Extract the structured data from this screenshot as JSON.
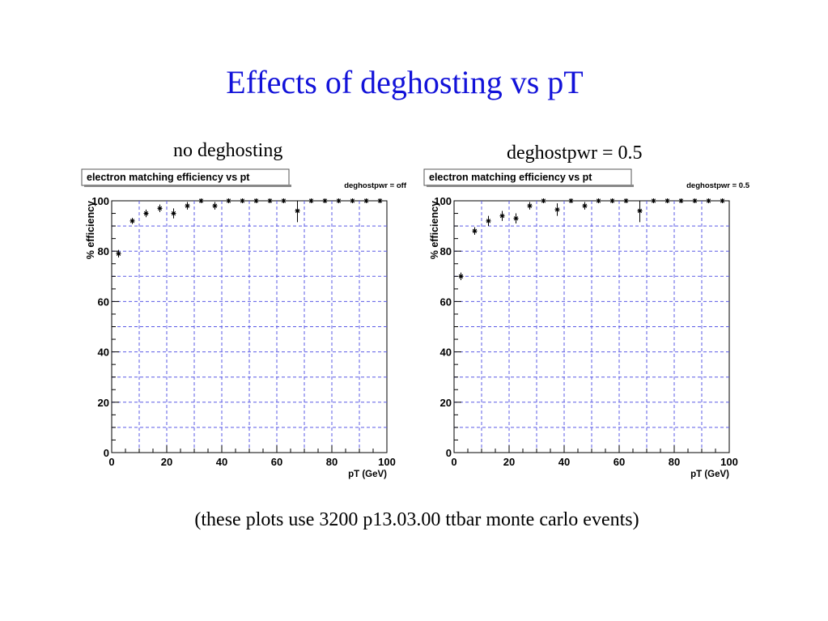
{
  "slide": {
    "title": "Effects of deghosting vs pT",
    "footnote": "(these plots use 3200 p13.03.00 ttbar monte carlo events)"
  },
  "colors": {
    "title": "#1212d9",
    "grid": "#5b5be6",
    "marker": "#000000"
  },
  "chart_data": [
    {
      "type": "scatter",
      "subtitle": "no deghosting",
      "title": "electron matching efficiency vs pt",
      "stat_label": "deghostpwr = off",
      "xlabel": "pT (GeV)",
      "ylabel": "% efficiency",
      "xlim": [
        0,
        100
      ],
      "ylim": [
        0,
        100
      ],
      "xticks": [
        0,
        20,
        40,
        60,
        80,
        100
      ],
      "yticks": [
        0,
        20,
        40,
        60,
        80,
        100
      ],
      "grid": true,
      "series": [
        {
          "x": [
            2.5,
            7.5,
            12.5,
            17.5,
            22.5,
            27.5,
            32.5,
            37.5,
            42.5,
            47.5,
            52.5,
            57.5,
            62.5,
            67.5,
            72.5,
            77.5,
            82.5,
            87.5,
            92.5,
            97.5
          ],
          "y": [
            79,
            92,
            95,
            97,
            95,
            98,
            100,
            98,
            100,
            100,
            100,
            100,
            100,
            96,
            100,
            100,
            100,
            100,
            100,
            100
          ],
          "yerr": [
            1.5,
            1.2,
            1.5,
            1.5,
            2,
            1.5,
            0,
            1.5,
            0,
            0,
            0,
            0,
            0,
            4.5,
            0,
            0,
            0,
            0,
            0,
            0
          ]
        }
      ]
    },
    {
      "type": "scatter",
      "subtitle": "deghostpwr = 0.5",
      "title": "electron matching efficiency vs pt",
      "stat_label": "deghostpwr = 0.5",
      "xlabel": "pT (GeV)",
      "ylabel": "% efficiency",
      "xlim": [
        0,
        100
      ],
      "ylim": [
        0,
        100
      ],
      "xticks": [
        0,
        20,
        40,
        60,
        80,
        100
      ],
      "yticks": [
        0,
        20,
        40,
        60,
        80,
        100
      ],
      "grid": true,
      "series": [
        {
          "x": [
            2.5,
            7.5,
            12.5,
            17.5,
            22.5,
            27.5,
            32.5,
            37.5,
            42.5,
            47.5,
            52.5,
            57.5,
            62.5,
            67.5,
            72.5,
            77.5,
            82.5,
            87.5,
            92.5,
            97.5
          ],
          "y": [
            70,
            88,
            92,
            94,
            93,
            98,
            100,
            96.5,
            100,
            98,
            100,
            100,
            100,
            96,
            100,
            100,
            100,
            100,
            100,
            100
          ],
          "yerr": [
            1.5,
            1.5,
            2,
            2,
            2,
            1.5,
            0,
            2.5,
            0,
            1.5,
            0,
            0,
            0,
            4.5,
            0,
            0,
            0,
            0,
            0,
            0
          ]
        }
      ]
    }
  ]
}
